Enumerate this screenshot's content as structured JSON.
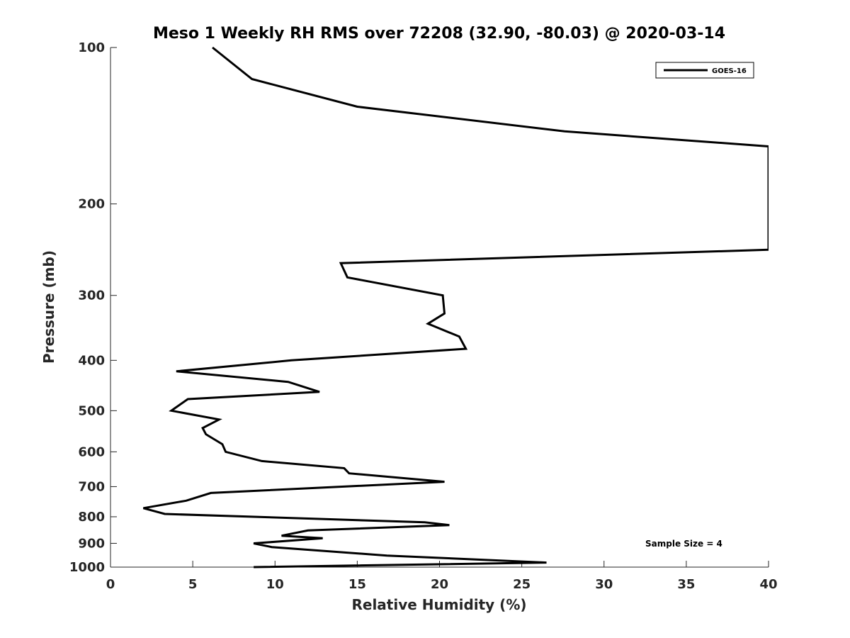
{
  "chart_data": {
    "type": "line",
    "title": "Meso 1 Weekly RH RMS over 72208 (32.90, -80.03) @ 2020-03-14",
    "xlabel": "Relative Humidity (%)",
    "ylabel": "Pressure (mb)",
    "xlim": [
      0,
      40
    ],
    "ylim": [
      100,
      1000
    ],
    "y_scale": "log",
    "y_reversed": true,
    "grid": false,
    "legend_position": "top-right",
    "x_ticks": [
      0,
      5,
      10,
      15,
      20,
      25,
      30,
      35,
      40
    ],
    "x_tick_labels": [
      "0",
      "5",
      "10",
      "15",
      "20",
      "25",
      "30",
      "35",
      "40"
    ],
    "y_ticks": [
      100,
      200,
      300,
      400,
      500,
      600,
      700,
      800,
      900,
      1000
    ],
    "y_tick_labels": [
      "100",
      "200",
      "300",
      "400",
      "500",
      "600",
      "700",
      "800",
      "900",
      "1000"
    ],
    "annotation": "Sample Size = 4",
    "series": [
      {
        "name": "GOES-16",
        "color": "#000000",
        "x": [
          6.2,
          8.6,
          15.0,
          27.6,
          40.0,
          40.0,
          14.0,
          14.4,
          20.2,
          20.3,
          19.3,
          21.2,
          21.6,
          11.0,
          4.0,
          10.8,
          12.7,
          4.7,
          3.7,
          6.6,
          5.6,
          5.8,
          6.8,
          7.0,
          9.2,
          14.2,
          14.5,
          20.3,
          6.1,
          4.6,
          2.0,
          3.3,
          19.1,
          20.6,
          12.0,
          10.4,
          12.9,
          8.7,
          9.8,
          16.8,
          26.5,
          8.7
        ],
        "y": [
          100,
          115,
          130,
          145,
          155,
          245,
          260,
          277,
          300,
          325,
          340,
          360,
          380,
          400,
          420,
          440,
          460,
          475,
          500,
          520,
          540,
          555,
          580,
          600,
          625,
          645,
          660,
          685,
          720,
          745,
          770,
          790,
          820,
          830,
          850,
          870,
          880,
          900,
          915,
          950,
          980,
          1000
        ]
      }
    ]
  }
}
